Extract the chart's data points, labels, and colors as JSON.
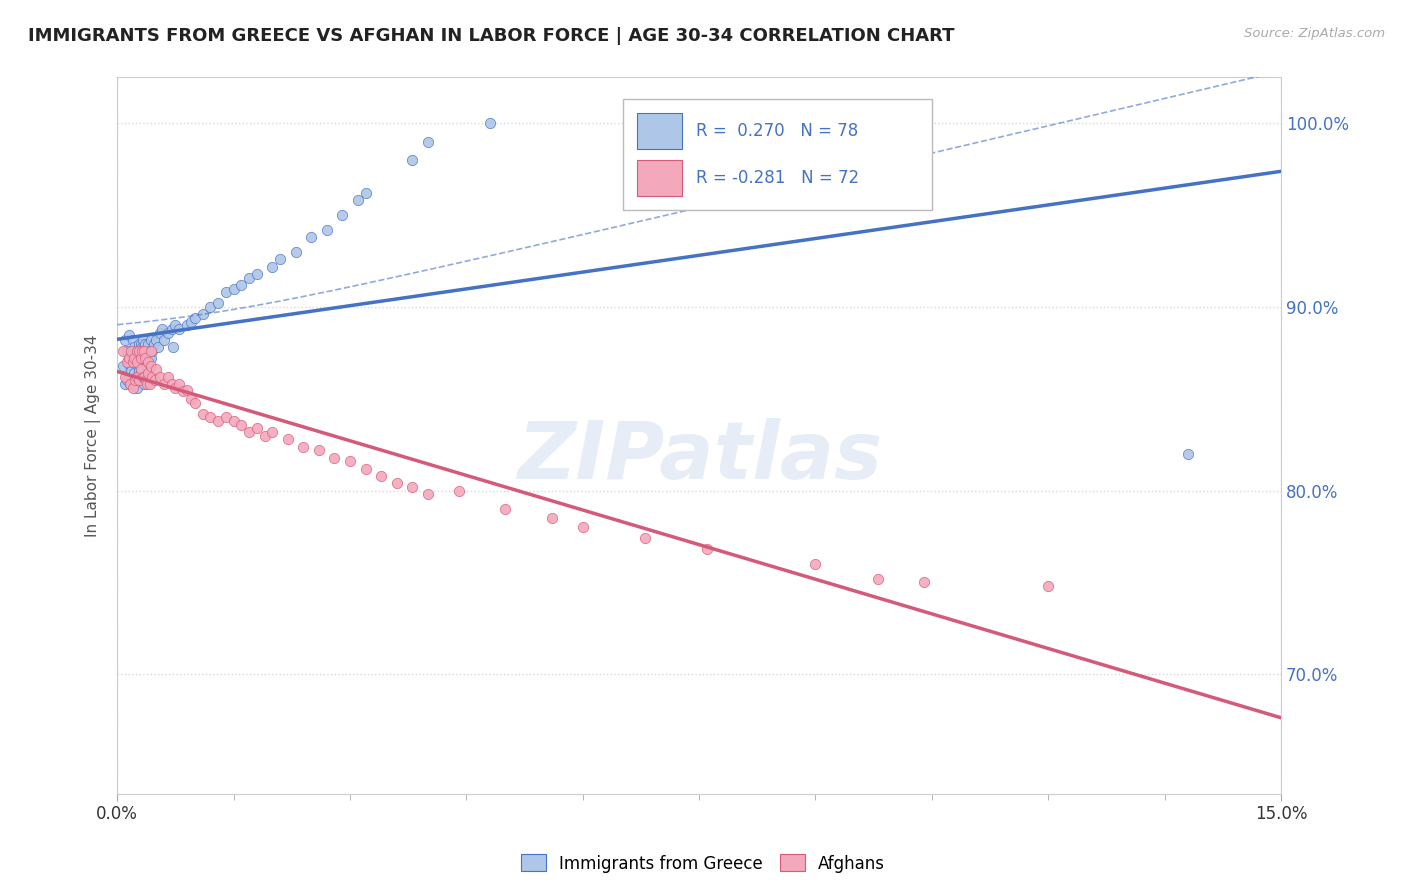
{
  "title": "IMMIGRANTS FROM GREECE VS AFGHAN IN LABOR FORCE | AGE 30-34 CORRELATION CHART",
  "source": "Source: ZipAtlas.com",
  "ylabel": "In Labor Force | Age 30-34",
  "xmin": 0.0,
  "xmax": 0.15,
  "ymin": 0.635,
  "ymax": 1.025,
  "yticks": [
    0.7,
    0.8,
    0.9,
    1.0
  ],
  "ytick_labels": [
    "70.0%",
    "80.0%",
    "90.0%",
    "100.0%"
  ],
  "xtick_labels": [
    "0.0%",
    "15.0%"
  ],
  "greece_R": 0.27,
  "greece_N": 78,
  "afghan_R": -0.281,
  "afghan_N": 72,
  "greece_color": "#aec6e8",
  "afghan_color": "#f4a8bc",
  "greece_line_color": "#4472c4",
  "afghan_line_color": "#d45a78",
  "grid_color": "#d8d8d8",
  "background_color": "#ffffff",
  "watermark": "ZIPatlas",
  "title_fontsize": 13,
  "legend_R_color": "#4472c4",
  "greece_x": [
    0.0008,
    0.001,
    0.001,
    0.0012,
    0.0012,
    0.0014,
    0.0015,
    0.0015,
    0.0016,
    0.0018,
    0.0018,
    0.002,
    0.002,
    0.0021,
    0.0022,
    0.0022,
    0.0023,
    0.0024,
    0.0025,
    0.0025,
    0.0026,
    0.0026,
    0.0027,
    0.0028,
    0.0028,
    0.0029,
    0.003,
    0.003,
    0.0031,
    0.0032,
    0.0033,
    0.0034,
    0.0034,
    0.0035,
    0.0036,
    0.0037,
    0.0038,
    0.0039,
    0.004,
    0.0041,
    0.0042,
    0.0043,
    0.0044,
    0.0045,
    0.0047,
    0.005,
    0.0052,
    0.0055,
    0.0058,
    0.006,
    0.0065,
    0.007,
    0.0072,
    0.0075,
    0.008,
    0.009,
    0.0095,
    0.01,
    0.011,
    0.012,
    0.013,
    0.014,
    0.015,
    0.016,
    0.017,
    0.018,
    0.02,
    0.021,
    0.023,
    0.025,
    0.027,
    0.029,
    0.031,
    0.032,
    0.038,
    0.04,
    0.048,
    0.138
  ],
  "greece_y": [
    0.868,
    0.882,
    0.858,
    0.876,
    0.86,
    0.871,
    0.885,
    0.869,
    0.858,
    0.875,
    0.865,
    0.882,
    0.87,
    0.858,
    0.878,
    0.864,
    0.872,
    0.86,
    0.876,
    0.862,
    0.87,
    0.856,
    0.868,
    0.88,
    0.865,
    0.872,
    0.88,
    0.865,
    0.872,
    0.878,
    0.882,
    0.87,
    0.858,
    0.878,
    0.88,
    0.872,
    0.868,
    0.876,
    0.88,
    0.872,
    0.876,
    0.882,
    0.872,
    0.876,
    0.88,
    0.882,
    0.878,
    0.886,
    0.888,
    0.882,
    0.886,
    0.888,
    0.878,
    0.89,
    0.888,
    0.89,
    0.892,
    0.894,
    0.896,
    0.9,
    0.902,
    0.908,
    0.91,
    0.912,
    0.916,
    0.918,
    0.922,
    0.926,
    0.93,
    0.938,
    0.942,
    0.95,
    0.958,
    0.962,
    0.98,
    0.99,
    1.0,
    0.82
  ],
  "afghan_x": [
    0.0008,
    0.001,
    0.0012,
    0.0015,
    0.0016,
    0.0018,
    0.002,
    0.002,
    0.0022,
    0.0023,
    0.0025,
    0.0025,
    0.0026,
    0.0028,
    0.0028,
    0.003,
    0.0031,
    0.0032,
    0.0033,
    0.0034,
    0.0035,
    0.0036,
    0.0037,
    0.0038,
    0.0039,
    0.004,
    0.0042,
    0.0043,
    0.0044,
    0.0045,
    0.0048,
    0.005,
    0.0055,
    0.006,
    0.0065,
    0.007,
    0.0075,
    0.008,
    0.0085,
    0.009,
    0.0095,
    0.01,
    0.011,
    0.012,
    0.013,
    0.014,
    0.015,
    0.016,
    0.017,
    0.018,
    0.019,
    0.02,
    0.022,
    0.024,
    0.026,
    0.028,
    0.03,
    0.032,
    0.034,
    0.036,
    0.038,
    0.04,
    0.044,
    0.05,
    0.056,
    0.06,
    0.068,
    0.076,
    0.09,
    0.098,
    0.104,
    0.12
  ],
  "afghan_y": [
    0.876,
    0.862,
    0.87,
    0.872,
    0.858,
    0.876,
    0.87,
    0.856,
    0.872,
    0.86,
    0.876,
    0.862,
    0.87,
    0.876,
    0.86,
    0.872,
    0.866,
    0.876,
    0.862,
    0.876,
    0.862,
    0.872,
    0.86,
    0.858,
    0.864,
    0.87,
    0.858,
    0.868,
    0.876,
    0.862,
    0.86,
    0.866,
    0.862,
    0.858,
    0.862,
    0.858,
    0.856,
    0.858,
    0.854,
    0.855,
    0.85,
    0.848,
    0.842,
    0.84,
    0.838,
    0.84,
    0.838,
    0.836,
    0.832,
    0.834,
    0.83,
    0.832,
    0.828,
    0.824,
    0.822,
    0.818,
    0.816,
    0.812,
    0.808,
    0.804,
    0.802,
    0.798,
    0.8,
    0.79,
    0.785,
    0.78,
    0.774,
    0.768,
    0.76,
    0.752,
    0.75,
    0.748
  ]
}
